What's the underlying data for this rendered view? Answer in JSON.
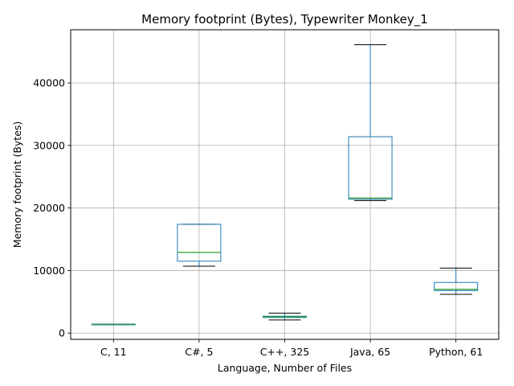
{
  "chart_data": {
    "type": "box",
    "title": "Memory footprint (Bytes), Typewriter Monkey_1",
    "xlabel": "Language, Number of Files",
    "ylabel": "Memory footprint (Bytes)",
    "ylim": [
      -1000,
      48500
    ],
    "yticks": [
      0,
      10000,
      20000,
      30000,
      40000
    ],
    "grid": true,
    "categories": [
      "C, 11",
      "C#, 5",
      "C++, 325",
      "Java, 65",
      "Python, 61"
    ],
    "boxes": [
      {
        "whisker_low": 1350,
        "q1": 1350,
        "median": 1400,
        "q3": 1450,
        "whisker_high": 1450
      },
      {
        "whisker_low": 10700,
        "q1": 11500,
        "median": 12900,
        "q3": 17400,
        "whisker_high": 17400
      },
      {
        "whisker_low": 2100,
        "q1": 2500,
        "median": 2600,
        "q3": 2700,
        "whisker_high": 3200
      },
      {
        "whisker_low": 21200,
        "q1": 21400,
        "median": 21600,
        "q3": 31400,
        "whisker_high": 46100
      },
      {
        "whisker_low": 6200,
        "q1": 6800,
        "median": 7000,
        "q3": 8100,
        "whisker_high": 10400
      }
    ],
    "colors": {
      "box": "#1f77b4",
      "median": "#2ca02c",
      "whisker_cap": "#000000",
      "grid": "#b0b0b0"
    }
  }
}
